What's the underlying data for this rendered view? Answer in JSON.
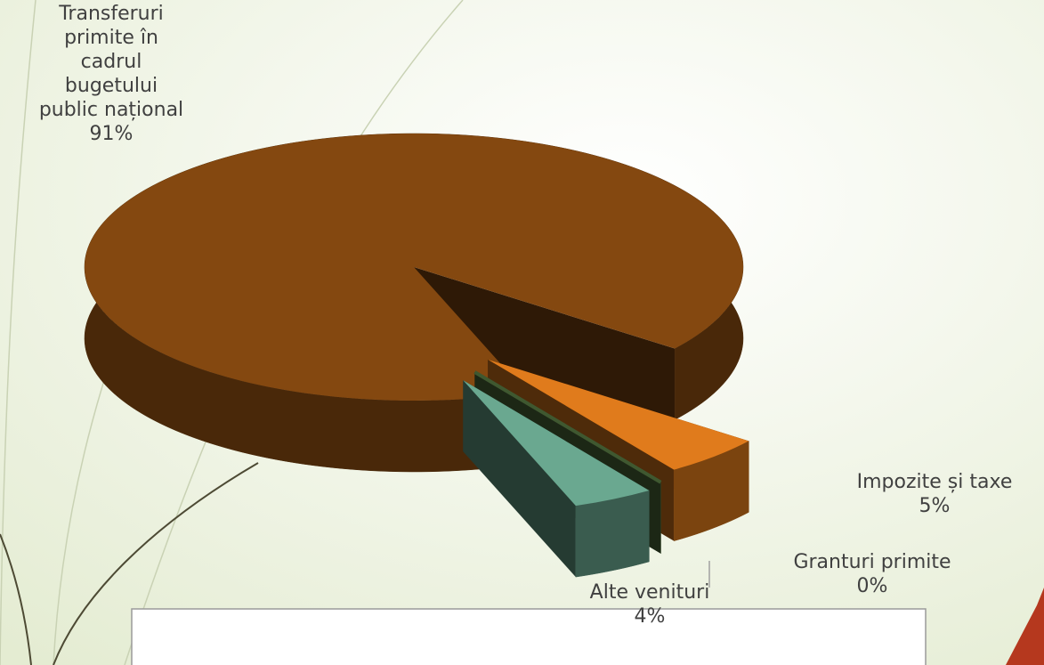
{
  "chart_data": {
    "type": "pie",
    "categories": [
      "Transferuri primite în cadrul bugetului public național",
      "Impozite și taxe",
      "Granturi primite",
      "Alte venituri"
    ],
    "values": [
      91,
      5,
      0,
      4
    ],
    "value_labels": [
      "91%",
      "5%",
      "0%",
      "4%"
    ],
    "colors": [
      "#844810",
      "#e07b1c",
      "#4f6e3c",
      "#6aa890"
    ]
  }
}
